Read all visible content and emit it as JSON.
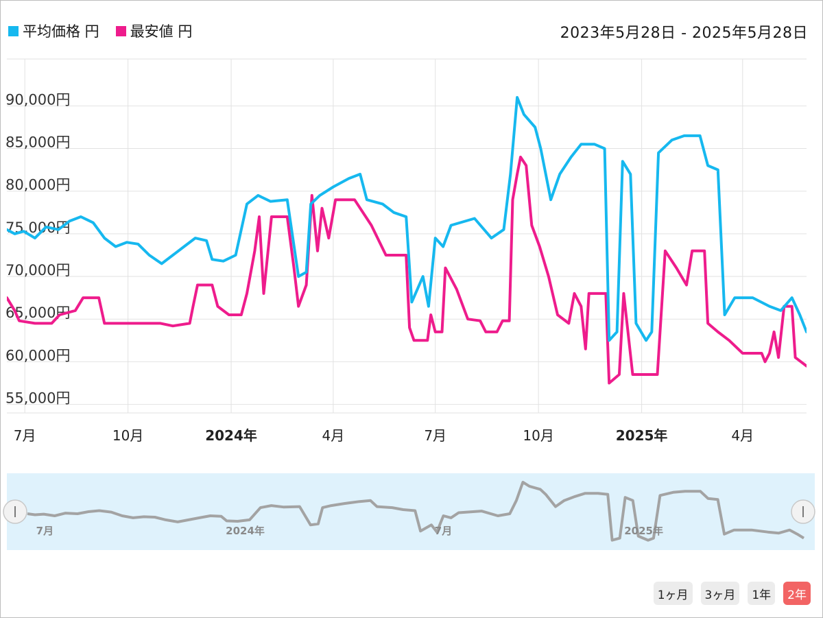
{
  "header": {
    "date_range": "2023年5月28日 - 2025年5月28日"
  },
  "legend": [
    {
      "label": "平均価格 円",
      "color": "#16b8ef"
    },
    {
      "label": "最安値 円",
      "color": "#ee1c8c"
    }
  ],
  "range_buttons": [
    {
      "label": "1ヶ月",
      "active": false
    },
    {
      "label": "3ヶ月",
      "active": false
    },
    {
      "label": "1年",
      "active": false
    },
    {
      "label": "2年",
      "active": true
    }
  ],
  "chart_data": {
    "type": "line",
    "x_start": "2023-06-15",
    "x_end": "2025-05-28",
    "ylim": [
      54000,
      95500
    ],
    "y_ticks": [
      55000,
      60000,
      65000,
      70000,
      75000,
      80000,
      85000,
      90000
    ],
    "y_tick_labels": [
      "55,000円",
      "60,000円",
      "65,000円",
      "70,000円",
      "75,000円",
      "80,000円",
      "85,000円",
      "90,000円"
    ],
    "x_ticks": [
      {
        "date": "2023-07-01",
        "label": "7月",
        "bold": false
      },
      {
        "date": "2023-10-01",
        "label": "10月",
        "bold": false
      },
      {
        "date": "2024-01-01",
        "label": "2024年",
        "bold": true
      },
      {
        "date": "2024-04-01",
        "label": "4月",
        "bold": false
      },
      {
        "date": "2024-07-01",
        "label": "7月",
        "bold": false
      },
      {
        "date": "2024-10-01",
        "label": "10月",
        "bold": false
      },
      {
        "date": "2025-01-01",
        "label": "2025年",
        "bold": true
      },
      {
        "date": "2025-04-01",
        "label": "4月",
        "bold": false
      }
    ],
    "navigator_ticks": [
      {
        "date": "2023-07-01",
        "label": "7月"
      },
      {
        "date": "2024-01-01",
        "label": "2024年"
      },
      {
        "date": "2024-07-01",
        "label": "7月"
      },
      {
        "date": "2025-01-01",
        "label": "2025年"
      }
    ],
    "series": [
      {
        "name": "平均価格 円",
        "color": "#16b8ef",
        "points": [
          [
            "2023-06-15",
            75500
          ],
          [
            "2023-06-22",
            75000
          ],
          [
            "2023-06-30",
            75300
          ],
          [
            "2023-07-10",
            74500
          ],
          [
            "2023-07-20",
            75800
          ],
          [
            "2023-07-31",
            75500
          ],
          [
            "2023-08-10",
            76500
          ],
          [
            "2023-08-20",
            77000
          ],
          [
            "2023-08-31",
            76300
          ],
          [
            "2023-09-10",
            74500
          ],
          [
            "2023-09-20",
            73500
          ],
          [
            "2023-09-30",
            74000
          ],
          [
            "2023-10-10",
            73800
          ],
          [
            "2023-10-20",
            72500
          ],
          [
            "2023-10-31",
            71500
          ],
          [
            "2023-11-10",
            72500
          ],
          [
            "2023-11-20",
            73500
          ],
          [
            "2023-11-30",
            74500
          ],
          [
            "2023-12-10",
            74200
          ],
          [
            "2023-12-15",
            72000
          ],
          [
            "2023-12-25",
            71800
          ],
          [
            "2024-01-05",
            72500
          ],
          [
            "2024-01-15",
            78500
          ],
          [
            "2024-01-25",
            79500
          ],
          [
            "2024-02-05",
            78800
          ],
          [
            "2024-02-20",
            79000
          ],
          [
            "2024-03-01",
            70000
          ],
          [
            "2024-03-08",
            70500
          ],
          [
            "2024-03-12",
            78500
          ],
          [
            "2024-03-20",
            79500
          ],
          [
            "2024-04-01",
            80500
          ],
          [
            "2024-04-15",
            81500
          ],
          [
            "2024-04-25",
            82000
          ],
          [
            "2024-05-01",
            79000
          ],
          [
            "2024-05-15",
            78500
          ],
          [
            "2024-05-25",
            77500
          ],
          [
            "2024-06-05",
            77000
          ],
          [
            "2024-06-10",
            67000
          ],
          [
            "2024-06-20",
            70000
          ],
          [
            "2024-06-25",
            66500
          ],
          [
            "2024-07-01",
            74500
          ],
          [
            "2024-07-08",
            73500
          ],
          [
            "2024-07-15",
            76000
          ],
          [
            "2024-08-05",
            76800
          ],
          [
            "2024-08-20",
            74500
          ],
          [
            "2024-08-31",
            75500
          ],
          [
            "2024-09-06",
            82000
          ],
          [
            "2024-09-12",
            91000
          ],
          [
            "2024-09-18",
            89000
          ],
          [
            "2024-09-28",
            87500
          ],
          [
            "2024-10-03",
            85000
          ],
          [
            "2024-10-12",
            79000
          ],
          [
            "2024-10-20",
            82000
          ],
          [
            "2024-10-30",
            84000
          ],
          [
            "2024-11-08",
            85500
          ],
          [
            "2024-11-20",
            85500
          ],
          [
            "2024-11-29",
            85000
          ],
          [
            "2024-12-03",
            62500
          ],
          [
            "2024-12-10",
            63500
          ],
          [
            "2024-12-15",
            83500
          ],
          [
            "2024-12-22",
            82000
          ],
          [
            "2024-12-27",
            64500
          ],
          [
            "2025-01-05",
            62500
          ],
          [
            "2025-01-10",
            63500
          ],
          [
            "2025-01-16",
            84500
          ],
          [
            "2025-01-28",
            86000
          ],
          [
            "2025-02-08",
            86500
          ],
          [
            "2025-02-22",
            86500
          ],
          [
            "2025-03-01",
            83000
          ],
          [
            "2025-03-10",
            82500
          ],
          [
            "2025-03-16",
            65500
          ],
          [
            "2025-03-25",
            67500
          ],
          [
            "2025-04-10",
            67500
          ],
          [
            "2025-04-25",
            66500
          ],
          [
            "2025-05-05",
            66000
          ],
          [
            "2025-05-15",
            67500
          ],
          [
            "2025-05-22",
            65500
          ],
          [
            "2025-05-28",
            63500
          ]
        ]
      },
      {
        "name": "最安値 円",
        "color": "#ee1c8c",
        "points": [
          [
            "2023-06-15",
            67500
          ],
          [
            "2023-06-22",
            66000
          ],
          [
            "2023-06-26",
            64800
          ],
          [
            "2023-07-10",
            64500
          ],
          [
            "2023-07-25",
            64500
          ],
          [
            "2023-08-01",
            65500
          ],
          [
            "2023-08-15",
            66000
          ],
          [
            "2023-08-22",
            67500
          ],
          [
            "2023-09-05",
            67500
          ],
          [
            "2023-09-10",
            64500
          ],
          [
            "2023-09-20",
            64500
          ],
          [
            "2023-10-15",
            64500
          ],
          [
            "2023-10-30",
            64500
          ],
          [
            "2023-11-10",
            64200
          ],
          [
            "2023-11-25",
            64500
          ],
          [
            "2023-11-28",
            66500
          ],
          [
            "2023-12-02",
            69000
          ],
          [
            "2023-12-15",
            69000
          ],
          [
            "2023-12-20",
            66500
          ],
          [
            "2023-12-30",
            65500
          ],
          [
            "2024-01-10",
            65500
          ],
          [
            "2024-01-15",
            68000
          ],
          [
            "2024-01-22",
            73000
          ],
          [
            "2024-01-26",
            77000
          ],
          [
            "2024-01-30",
            68000
          ],
          [
            "2024-02-06",
            77000
          ],
          [
            "2024-02-20",
            77000
          ],
          [
            "2024-02-26",
            71000
          ],
          [
            "2024-03-01",
            66500
          ],
          [
            "2024-03-08",
            69000
          ],
          [
            "2024-03-13",
            79500
          ],
          [
            "2024-03-18",
            73000
          ],
          [
            "2024-03-22",
            78000
          ],
          [
            "2024-03-28",
            74500
          ],
          [
            "2024-04-03",
            79000
          ],
          [
            "2024-04-20",
            79000
          ],
          [
            "2024-05-05",
            76000
          ],
          [
            "2024-05-18",
            72500
          ],
          [
            "2024-06-05",
            72500
          ],
          [
            "2024-06-08",
            64000
          ],
          [
            "2024-06-12",
            62500
          ],
          [
            "2024-06-24",
            62500
          ],
          [
            "2024-06-27",
            65500
          ],
          [
            "2024-07-01",
            63500
          ],
          [
            "2024-07-07",
            63500
          ],
          [
            "2024-07-10",
            71000
          ],
          [
            "2024-07-20",
            68500
          ],
          [
            "2024-07-30",
            65000
          ],
          [
            "2024-08-10",
            64800
          ],
          [
            "2024-08-15",
            63500
          ],
          [
            "2024-08-25",
            63500
          ],
          [
            "2024-08-30",
            64800
          ],
          [
            "2024-09-05",
            64800
          ],
          [
            "2024-09-08",
            79000
          ],
          [
            "2024-09-12",
            82000
          ],
          [
            "2024-09-15",
            84000
          ],
          [
            "2024-09-20",
            83000
          ],
          [
            "2024-09-25",
            76000
          ],
          [
            "2024-10-02",
            73500
          ],
          [
            "2024-10-10",
            70000
          ],
          [
            "2024-10-18",
            65500
          ],
          [
            "2024-10-28",
            64500
          ],
          [
            "2024-11-02",
            68000
          ],
          [
            "2024-11-08",
            66500
          ],
          [
            "2024-11-12",
            61500
          ],
          [
            "2024-11-15",
            68000
          ],
          [
            "2024-11-22",
            68000
          ],
          [
            "2024-11-30",
            68000
          ],
          [
            "2024-12-03",
            57500
          ],
          [
            "2024-12-12",
            58500
          ],
          [
            "2024-12-16",
            68000
          ],
          [
            "2024-12-24",
            58500
          ],
          [
            "2025-01-06",
            58500
          ],
          [
            "2025-01-15",
            58500
          ],
          [
            "2025-01-22",
            73000
          ],
          [
            "2025-02-01",
            71000
          ],
          [
            "2025-02-10",
            69000
          ],
          [
            "2025-02-15",
            73000
          ],
          [
            "2025-02-26",
            73000
          ],
          [
            "2025-03-01",
            64500
          ],
          [
            "2025-03-10",
            63500
          ],
          [
            "2025-03-20",
            62500
          ],
          [
            "2025-04-01",
            61000
          ],
          [
            "2025-04-18",
            61000
          ],
          [
            "2025-04-21",
            60000
          ],
          [
            "2025-04-25",
            61000
          ],
          [
            "2025-04-29",
            63500
          ],
          [
            "2025-05-03",
            60500
          ],
          [
            "2025-05-08",
            66500
          ],
          [
            "2025-05-15",
            66500
          ],
          [
            "2025-05-18",
            60500
          ],
          [
            "2025-05-28",
            59500
          ]
        ]
      }
    ],
    "grid": true,
    "legend_position": "top-left",
    "navigator": true
  }
}
